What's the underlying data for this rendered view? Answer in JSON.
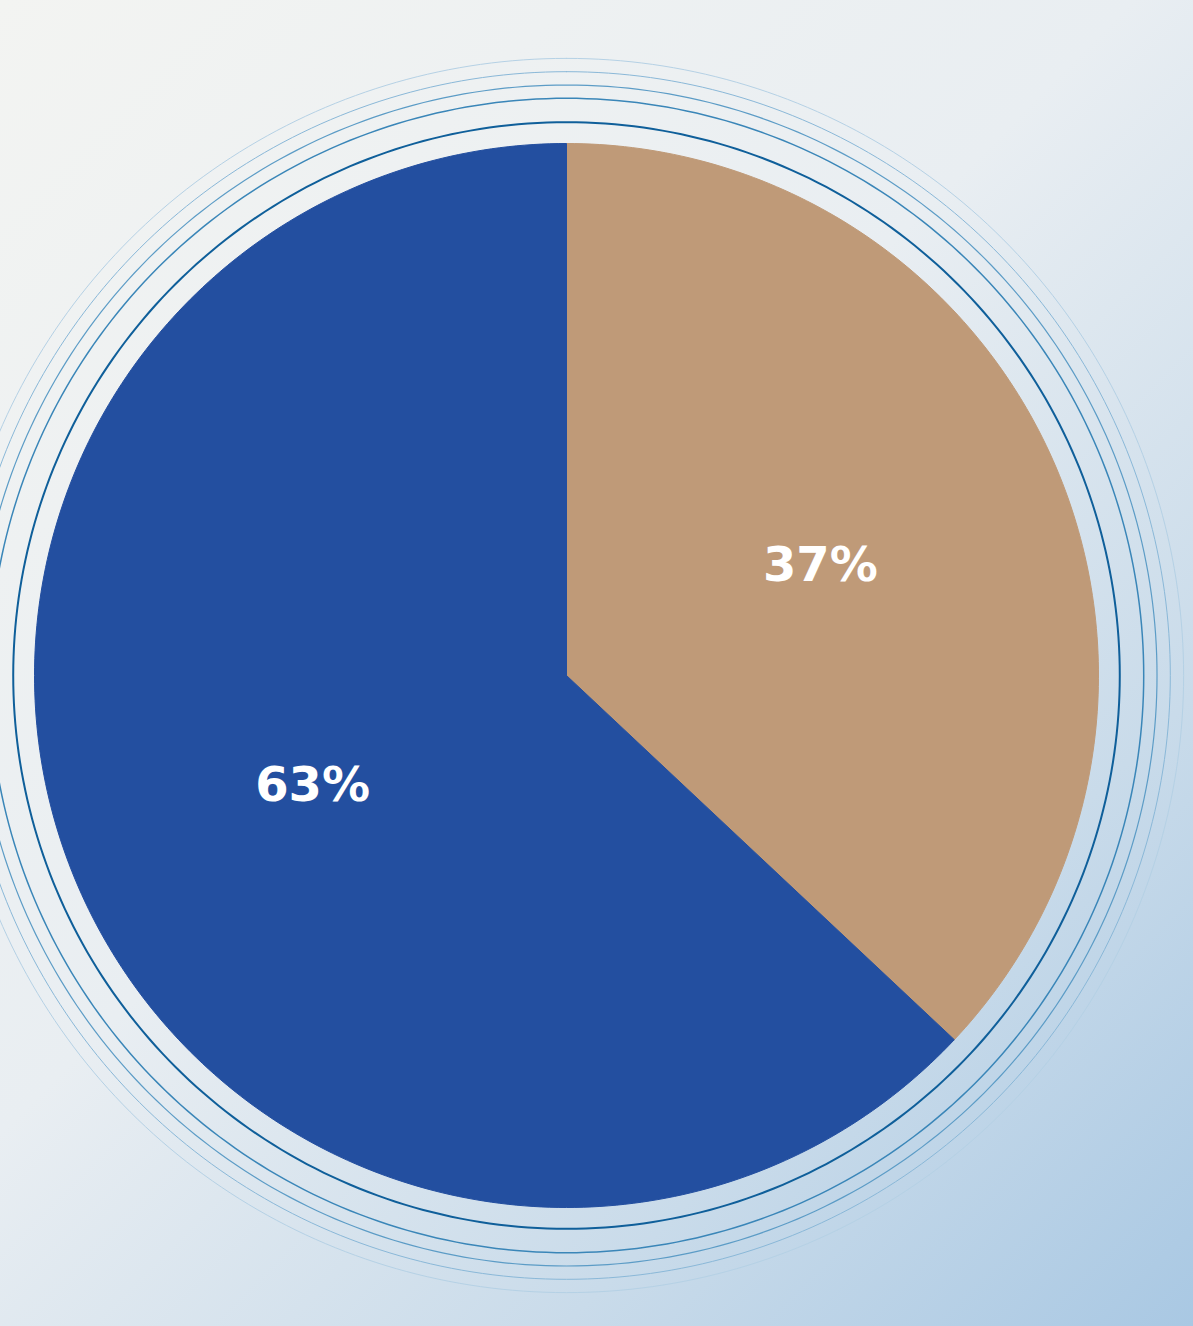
{
  "chart_data": {
    "type": "pie",
    "values": [
      37,
      63
    ],
    "value_labels": [
      "37%",
      "63%"
    ],
    "colors": [
      "#bf9a78",
      "#234fa0"
    ],
    "data_labels": true
  }
}
